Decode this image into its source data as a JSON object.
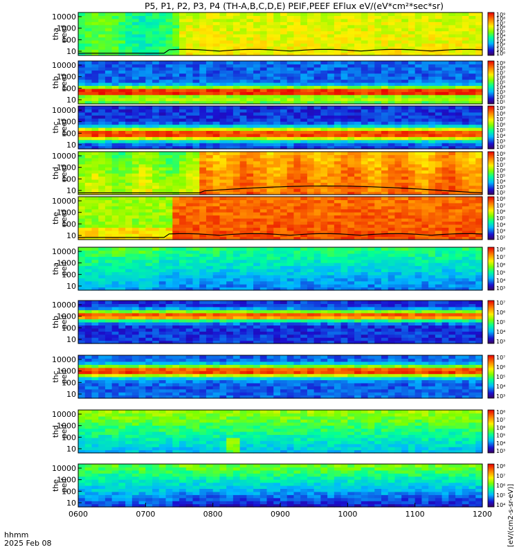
{
  "chart_data": {
    "type": "heatmap",
    "title": "P5, P1, P2, P3, P4 (TH-A,B,C,D,E) PEIF,PEEF EFlux eV/(eV*cm²*sec*sr)",
    "x_ticks": [
      "0600",
      "0700",
      "0800",
      "0900",
      "1000",
      "1100",
      "1200"
    ],
    "x_range": [
      "0600",
      "1200"
    ],
    "x_label_line1": "hhmm",
    "x_label_line2": "2025 Feb 08",
    "colorbar_label": "[eV/(cm2-s-sr-eV)]",
    "y_scale": "log",
    "y_ticks": [
      "10",
      "100",
      "1000",
      "10000"
    ],
    "panels": [
      {
        "label1": "tha",
        "label2": "peef",
        "cb_ticks": [
          "10⁹",
          "10⁸",
          "10⁷",
          "10⁶",
          "10⁵",
          "10⁴",
          "10³",
          "10²",
          "10¹",
          "10⁰"
        ],
        "cb_range": [
          0,
          10
        ],
        "curve": true
      },
      {
        "label1": "thb",
        "label2": "peef",
        "cb_ticks": [
          "10⁹",
          "10⁸",
          "10⁷",
          "10⁶",
          "10⁵",
          "10⁴",
          "10³",
          "10²",
          "10¹"
        ],
        "cb_range": [
          1,
          9
        ],
        "curve": false
      },
      {
        "label1": "thc",
        "label2": "peef",
        "cb_ticks": [
          "10⁹",
          "10⁸",
          "10⁷",
          "10⁶",
          "10⁵",
          "10⁴",
          "10³",
          "10²"
        ],
        "cb_range": [
          2,
          9
        ],
        "curve": false
      },
      {
        "label1": "thd",
        "label2": "peef",
        "cb_ticks": [
          "10⁹",
          "10⁸",
          "10⁷",
          "10⁶",
          "10⁵",
          "10⁴",
          "10³",
          "10²"
        ],
        "cb_range": [
          2,
          9
        ],
        "curve": true
      },
      {
        "label1": "the",
        "label2": "peef",
        "cb_ticks": [
          "10⁸",
          "10⁷",
          "10⁶",
          "10⁵",
          "10⁴",
          "10³",
          "10²"
        ],
        "cb_range": [
          2,
          8
        ],
        "curve": true
      },
      {
        "label1": "tha",
        "label2": "peif",
        "cb_ticks": [
          "10⁸",
          "10⁷",
          "10⁶",
          "10⁵",
          "10⁴",
          "10³"
        ],
        "cb_range": [
          3,
          8
        ],
        "curve": false
      },
      {
        "label1": "thb",
        "label2": "peif",
        "cb_ticks": [
          "10⁷",
          "10⁶",
          "10⁵",
          "10⁴",
          "10³"
        ],
        "cb_range": [
          3,
          7
        ],
        "curve": false
      },
      {
        "label1": "thc",
        "label2": "peif",
        "cb_ticks": [
          "10⁷",
          "10⁶",
          "10⁵",
          "10⁴",
          "10³"
        ],
        "cb_range": [
          3,
          7
        ],
        "curve": false
      },
      {
        "label1": "thd",
        "label2": "peif",
        "cb_ticks": [
          "10⁸",
          "10⁷",
          "10⁶",
          "10⁵",
          "10⁴",
          "10³"
        ],
        "cb_range": [
          3,
          8
        ],
        "curve": false
      },
      {
        "label1": "the",
        "label2": "peif",
        "cb_ticks": [
          "10⁸",
          "10⁷",
          "10⁶",
          "10⁵",
          "10⁴"
        ],
        "cb_range": [
          4,
          8
        ],
        "curve": false
      }
    ]
  }
}
